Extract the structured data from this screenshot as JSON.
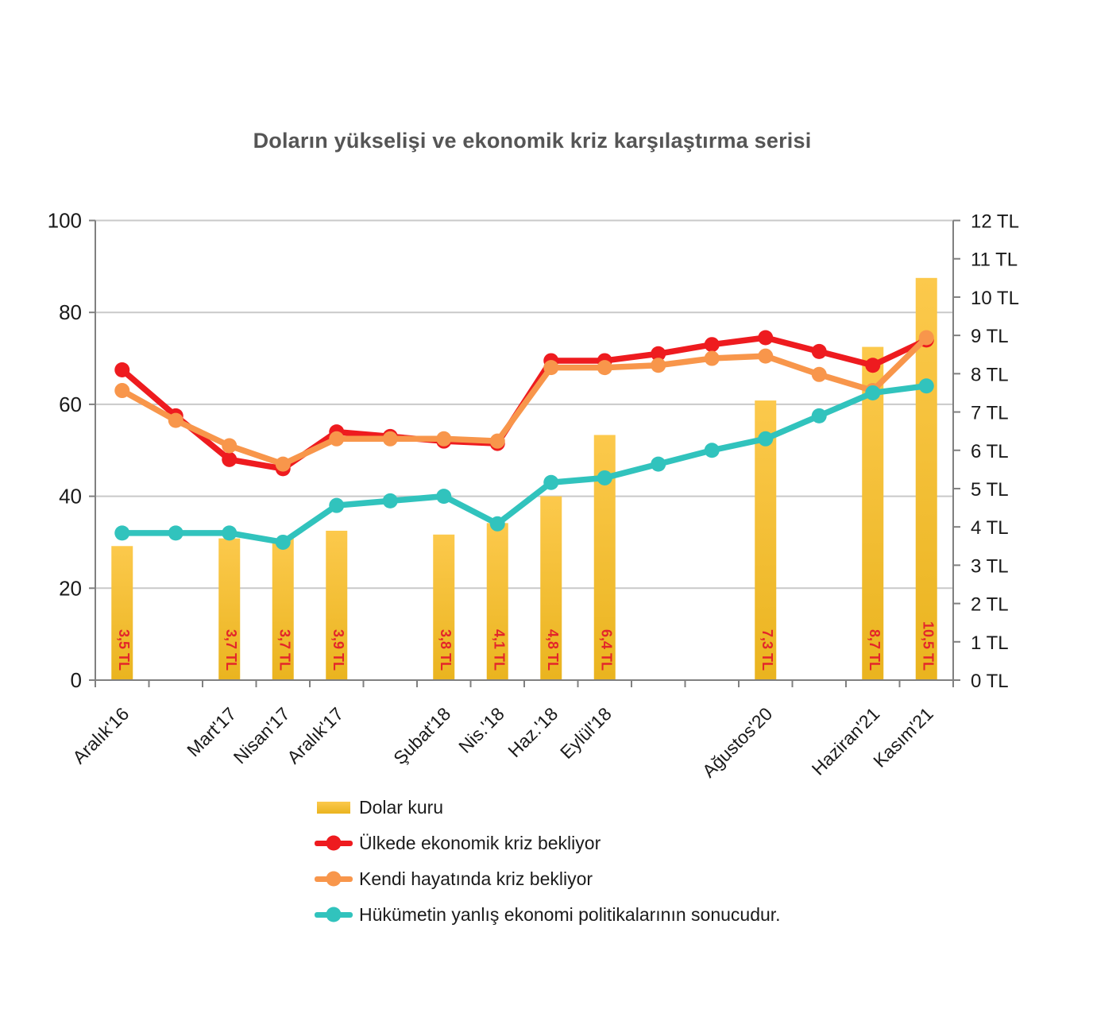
{
  "title": "Doların yükselişi ve ekonomik kriz karşılaştırma serisi",
  "colors": {
    "bar_top": "#FCC94C",
    "bar_bottom": "#EAB41F",
    "bar_label": "#E3262A",
    "red": "#EE1B1F",
    "orange": "#F8964B",
    "teal": "#31C3BD",
    "grid": "#C9C9C9",
    "axis": "#808080",
    "text": "#1A1A1A",
    "title_text": "#555555"
  },
  "chart_data": {
    "type": "bar+line",
    "title": "Doların yükselişi ve ekonomik kriz karşılaştırma serisi",
    "categories": [
      "Aralık'16",
      "",
      "Mart'17",
      "Nisan'17",
      "Aralık'17",
      "",
      "Şubat'18",
      "Nis.'18",
      "Haz.'18",
      "Eylül'18",
      "",
      "",
      "Ağustos'20",
      "",
      "Haziran'21",
      "Kasım'21"
    ],
    "bar_series": {
      "name": "Dolar kuru",
      "unit": "TL",
      "values": [
        3.5,
        null,
        3.7,
        3.7,
        3.9,
        null,
        3.8,
        4.1,
        4.8,
        6.4,
        null,
        null,
        7.3,
        null,
        8.7,
        10.5
      ],
      "labels": [
        "3,5 TL",
        null,
        "3,7 TL",
        "3,7 TL",
        "3,9 TL",
        null,
        "3,8 TL",
        "4,1 TL",
        "4,8 TL",
        "6,4 TL",
        null,
        null,
        "7,3 TL",
        null,
        "8,7 TL",
        "10,5 TL"
      ]
    },
    "line_series": [
      {
        "name": "Ülkede ekonomik kriz bekliyor",
        "color_key": "red",
        "values": [
          67.5,
          57.5,
          48,
          46,
          54,
          53,
          52,
          51.5,
          69.5,
          69.5,
          71,
          73,
          74.5,
          71.5,
          68.5,
          74
        ]
      },
      {
        "name": "Kendi hayatında kriz bekliyor",
        "color_key": "orange",
        "values": [
          63,
          56.5,
          51,
          47,
          52.5,
          52.5,
          52.5,
          52,
          68,
          68,
          68.5,
          70,
          70.5,
          66.5,
          63,
          74.5
        ]
      },
      {
        "name": "Hükümetin yanlış ekonomi politikalarının sonucudur.",
        "color_key": "teal",
        "values": [
          32,
          32,
          32,
          30,
          38,
          39,
          40,
          34,
          43,
          44,
          47,
          50,
          52.5,
          57.5,
          62.5,
          64
        ]
      }
    ],
    "left_axis": {
      "min": 0,
      "max": 100,
      "ticks": [
        0,
        20,
        40,
        60,
        80,
        100
      ]
    },
    "right_axis": {
      "min": 0,
      "max": 12,
      "tick_labels": [
        "0 TL",
        "1 TL",
        "2 TL",
        "3 TL",
        "4 TL",
        "5 TL",
        "6 TL",
        "7 TL",
        "8 TL",
        "9 TL",
        "10 TL",
        "11 TL",
        "12 TL"
      ]
    },
    "grid": true,
    "legend_position": "bottom-left",
    "legend": [
      {
        "type": "bar",
        "color_key": "bar",
        "label": "Dolar kuru"
      },
      {
        "type": "line",
        "color_key": "red",
        "label": "Ülkede ekonomik kriz bekliyor"
      },
      {
        "type": "line",
        "color_key": "orange",
        "label": "Kendi hayatında kriz bekliyor"
      },
      {
        "type": "line",
        "color_key": "teal",
        "label": "Hükümetin yanlış ekonomi politikalarının sonucudur."
      }
    ]
  }
}
